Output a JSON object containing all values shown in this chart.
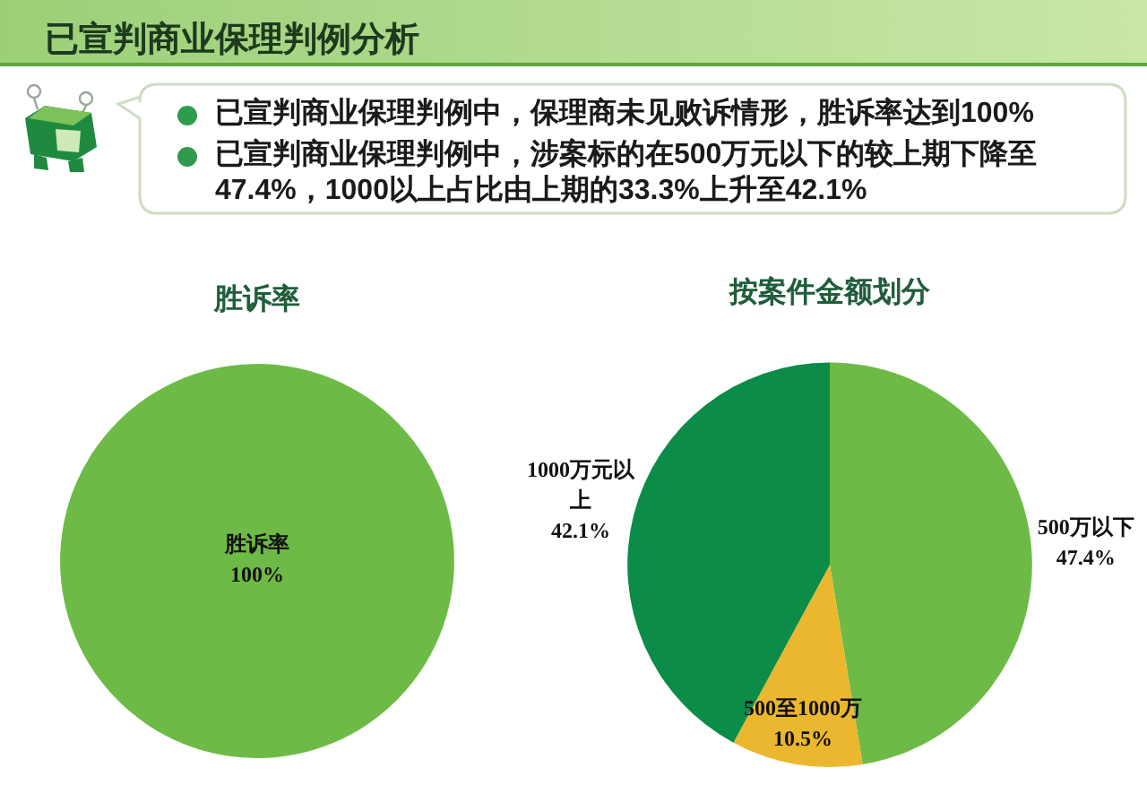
{
  "chart_data": [
    {
      "type": "other",
      "title": "已宣判商业保理判例分析",
      "annotations": [
        "已宣判商业保理判例中，保理商未见败诉情形，胜诉率达到100%",
        "已宣判商业保理判例中，涉案标的在500万元以下的较上期下降至47.4%，1000以上占比由上期的33.3%上升至42.1%"
      ]
    },
    {
      "type": "pie",
      "title": "胜诉率",
      "categories": [
        "胜诉率"
      ],
      "values": [
        100
      ],
      "colors": [
        "#6dbb46"
      ],
      "value_labels": [
        "100%"
      ]
    },
    {
      "type": "pie",
      "title": "按案件金额划分",
      "categories": [
        "500万以下",
        "500至1000万",
        "1000万元以上"
      ],
      "values": [
        47.4,
        10.5,
        42.1
      ],
      "colors": [
        "#6dbb46",
        "#ebb72f",
        "#0b8c47"
      ],
      "value_labels": [
        "47.4%",
        "10.5%",
        "42.1%"
      ]
    }
  ]
}
